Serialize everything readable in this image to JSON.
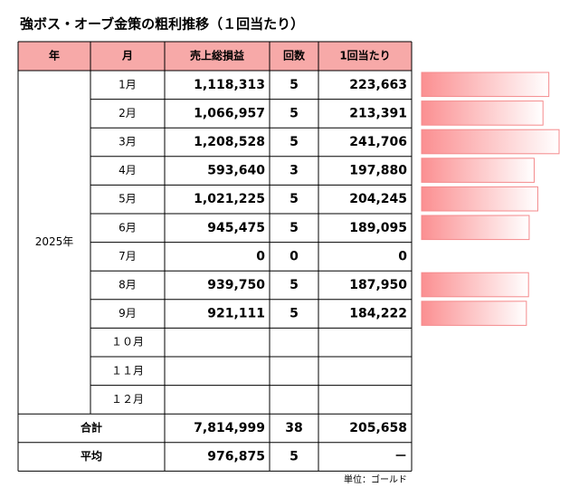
{
  "title": "強ボス・オーブ金策の粗利推移（１回当たり）",
  "table": {
    "headers": [
      "年",
      "月",
      "売上総損益",
      "回数",
      "1回当たり"
    ],
    "year": "2025年",
    "rows": [
      {
        "month": "1月",
        "sales": "1,118,313",
        "count": 5,
        "per_time": {
          "value": 223663,
          "label": "223,663"
        }
      },
      {
        "month": "2月",
        "sales": "1,066,957",
        "count": 5,
        "per_time": {
          "value": 213391,
          "label": "213,391"
        }
      },
      {
        "month": "3月",
        "sales": "1,208,528",
        "count": 5,
        "per_time": {
          "value": 241706,
          "label": "241,706"
        }
      },
      {
        "month": "4月",
        "sales": "593,640",
        "count": 3,
        "per_time": {
          "value": 197880,
          "label": "197,880"
        }
      },
      {
        "month": "5月",
        "sales": "1,021,225",
        "count": 5,
        "per_time": {
          "value": 204245,
          "label": "204,245"
        }
      },
      {
        "month": "6月",
        "sales": "945,475",
        "count": 5,
        "per_time": {
          "value": 189095,
          "label": "189,095"
        }
      },
      {
        "month": "7月",
        "sales": 0,
        "count": 0,
        "per_time": {
          "value": 0,
          "label": "0"
        }
      },
      {
        "month": "8月",
        "sales": "939,750",
        "count": 5,
        "per_time": {
          "value": 187950,
          "label": "187,950"
        }
      },
      {
        "month": "9月",
        "sales": "921,111",
        "count": 5,
        "per_time": {
          "value": 184222,
          "label": "184,222"
        }
      },
      {
        "month": "１０月"
      },
      {
        "month": "１１月"
      },
      {
        "month": "１２月"
      }
    ],
    "total": {
      "label": "合計",
      "sales": "7,814,999",
      "count": 38,
      "per_time": "205,658"
    },
    "average": {
      "label": "平均",
      "sales": "976,875",
      "count": 5,
      "per_time": "－"
    }
  },
  "unit_note": "単位：ゴールド"
}
